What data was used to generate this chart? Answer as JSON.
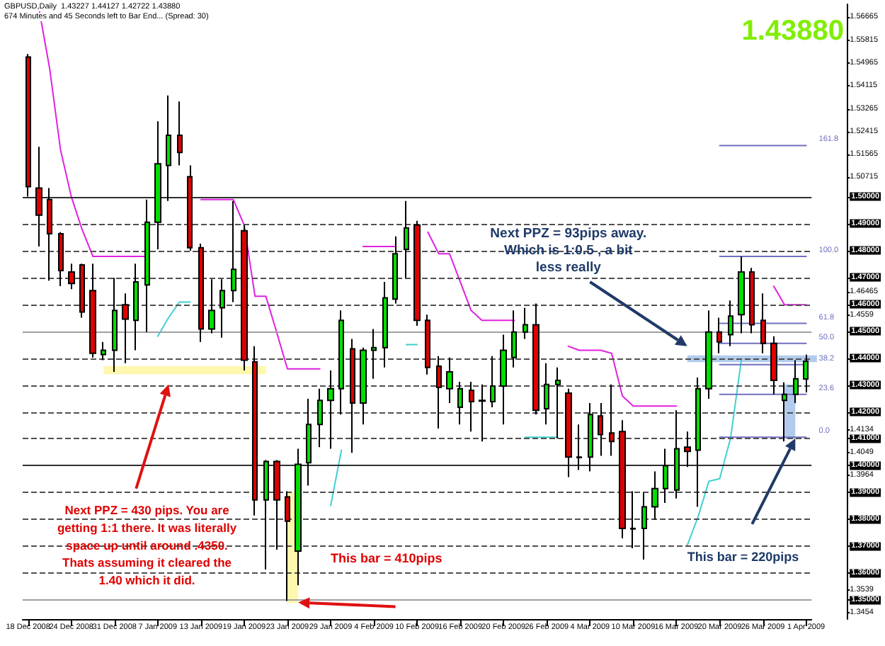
{
  "chart_data": {
    "type": "candlestick",
    "title": "GBPUSD,Daily  1.43227 1.44127 1.42722 1.43880",
    "subtitle": "674 Minutes and 45 Seconds left to Bar End... (Spread: 30)",
    "categories": [
      "18 Dec 2008",
      null,
      null,
      null,
      "24 Dec 2008",
      null,
      null,
      null,
      "31 Dec 2008",
      null,
      null,
      null,
      "7 Jan 2009",
      null,
      null,
      null,
      "13 Jan 2009",
      null,
      null,
      null,
      "19 Jan 2009",
      null,
      null,
      null,
      "23 Jan 2009",
      null,
      null,
      null,
      "29 Jan 2009",
      null,
      null,
      null,
      "4 Feb 2009",
      null,
      null,
      null,
      "10 Feb 2009",
      null,
      null,
      null,
      "16 Feb 2009",
      null,
      null,
      null,
      "20 Feb 2009",
      null,
      null,
      null,
      "26 Feb 2009",
      null,
      null,
      null,
      "4 Mar 2009",
      null,
      null,
      null,
      "10 Mar 2009",
      null,
      null,
      null,
      "16 Mar 2009",
      null,
      null,
      null,
      "20 Mar 2009",
      null,
      null,
      null,
      "26 Mar 2009",
      null,
      null,
      null,
      "1 Apr 2009"
    ],
    "ohlc": [
      [
        1.5519,
        1.553,
        1.5,
        1.5037
      ],
      [
        1.5032,
        1.5185,
        1.4815,
        1.4931
      ],
      [
        1.4989,
        1.5032,
        1.4688,
        1.4862
      ],
      [
        1.4862,
        1.4868,
        1.4667,
        1.4725
      ],
      [
        1.472,
        1.4751,
        1.4656,
        1.4677
      ],
      [
        1.4746,
        1.4751,
        1.455,
        1.4571
      ],
      [
        1.4651,
        1.4751,
        1.4402,
        1.4418
      ],
      [
        1.4413,
        1.446,
        1.4392,
        1.4429
      ],
      [
        1.4429,
        1.4698,
        1.4349,
        1.4577
      ],
      [
        1.4598,
        1.464,
        1.4381,
        1.4545
      ],
      [
        1.454,
        1.4751,
        1.4429,
        1.4683
      ],
      [
        1.4672,
        1.4989,
        1.4497,
        1.4905
      ],
      [
        1.4905,
        1.528,
        1.4804,
        1.5122
      ],
      [
        1.5116,
        1.5376,
        1.4984,
        1.5228
      ],
      [
        1.5228,
        1.5354,
        1.5116,
        1.5164
      ],
      [
        1.5074,
        1.5116,
        1.4799,
        1.481
      ],
      [
        1.481,
        1.4825,
        1.446,
        1.4508
      ],
      [
        1.4508,
        1.4693,
        1.4492,
        1.4577
      ],
      [
        1.4587,
        1.4693,
        1.4476,
        1.4651
      ],
      [
        1.4651,
        1.4984,
        1.4608,
        1.473
      ],
      [
        1.4873,
        1.4894,
        1.4354,
        1.4392
      ],
      [
        1.4386,
        1.4444,
        1.3815,
        1.3873
      ],
      [
        1.3873,
        1.4021,
        1.3614,
        1.4016
      ],
      [
        1.4016,
        1.4021,
        1.3688,
        1.3873
      ],
      [
        1.3884,
        1.3905,
        1.3497,
        1.3794
      ],
      [
        1.3683,
        1.4063,
        1.3556,
        1.4005
      ],
      [
        1.4011,
        1.4249,
        1.3926,
        1.4153
      ],
      [
        1.4153,
        1.4286,
        1.4069,
        1.4243
      ],
      [
        1.4243,
        1.4354,
        1.4063,
        1.4286
      ],
      [
        1.4286,
        1.4577,
        1.419,
        1.454
      ],
      [
        1.4434,
        1.4471,
        1.4048,
        1.4233
      ],
      [
        1.4233,
        1.4439,
        1.4153,
        1.4429
      ],
      [
        1.4429,
        1.4508,
        1.4323,
        1.4439
      ],
      [
        1.4439,
        1.4683,
        1.4365,
        1.4624
      ],
      [
        1.4619,
        1.4852,
        1.4603,
        1.4788
      ],
      [
        1.4804,
        1.4984,
        1.4698,
        1.4884
      ],
      [
        1.4894,
        1.491,
        1.452,
        1.454
      ],
      [
        1.454,
        1.4561,
        1.4339,
        1.4365
      ],
      [
        1.437,
        1.4407,
        1.4138,
        1.4291
      ],
      [
        1.4286,
        1.4402,
        1.4233,
        1.4349
      ],
      [
        1.4217,
        1.4312,
        1.4153,
        1.4286
      ],
      [
        1.428,
        1.4312,
        1.4127,
        1.4238
      ],
      [
        1.4243,
        1.4302,
        1.409,
        1.424
      ],
      [
        1.4238,
        1.4407,
        1.4217,
        1.4296
      ],
      [
        1.4296,
        1.4487,
        1.4153,
        1.4429
      ],
      [
        1.4402,
        1.4577,
        1.4365,
        1.4497
      ],
      [
        1.4497,
        1.4587,
        1.4471,
        1.4524
      ],
      [
        1.4524,
        1.4603,
        1.419,
        1.4206
      ],
      [
        1.4212,
        1.4381,
        1.4153,
        1.4302
      ],
      [
        1.4302,
        1.4365,
        1.4101,
        1.4317
      ],
      [
        1.427,
        1.4286,
        1.3958,
        1.4032
      ],
      [
        1.4032,
        1.4153,
        1.3984,
        1.403
      ],
      [
        1.4032,
        1.4233,
        1.3979,
        1.419
      ],
      [
        1.4185,
        1.4233,
        1.4037,
        1.4116
      ],
      [
        1.4122,
        1.4302,
        1.4037,
        1.409
      ],
      [
        1.4127,
        1.4169,
        1.373,
        1.3767
      ],
      [
        1.3767,
        1.3905,
        1.3693,
        1.3765
      ],
      [
        1.3767,
        1.3899,
        1.3651,
        1.3847
      ],
      [
        1.3847,
        1.3979,
        1.3799,
        1.3915
      ],
      [
        1.3915,
        1.4063,
        1.3862,
        1.4
      ],
      [
        1.391,
        1.4206,
        1.3878,
        1.4063
      ],
      [
        1.4069,
        1.4127,
        1.3995,
        1.4053
      ],
      [
        1.4058,
        1.4328,
        1.3847,
        1.4286
      ],
      [
        1.4286,
        1.4577,
        1.4249,
        1.4497
      ],
      [
        1.4497,
        1.455,
        1.4418,
        1.446
      ],
      [
        1.4487,
        1.4614,
        1.4444,
        1.4556
      ],
      [
        1.4561,
        1.4778,
        1.4492,
        1.472
      ],
      [
        1.472,
        1.4735,
        1.4492,
        1.4524
      ],
      [
        1.454,
        1.464,
        1.4418,
        1.4455
      ],
      [
        1.4455,
        1.4481,
        1.4265,
        1.4317
      ],
      [
        1.4243,
        1.431,
        1.409,
        1.4265
      ],
      [
        1.4265,
        1.4392,
        1.4233,
        1.4323
      ],
      [
        1.43227,
        1.44127,
        1.42722,
        1.4388
      ]
    ],
    "colors": [
      "#e00000",
      "#e00000",
      "#e00000",
      "#e00000",
      "#e00000",
      "#e00000",
      "#e00000",
      "#00e000",
      "#00e000",
      "#e00000",
      "#00e000",
      "#00e000",
      "#00e000",
      "#00e000",
      "#e00000",
      "#e00000",
      "#e00000",
      "#00e000",
      "#00e000",
      "#00e000",
      "#e00000",
      "#e00000",
      "#00e000",
      "#e00000",
      "#e00000",
      "#00e000",
      "#00e000",
      "#00e000",
      "#00e000",
      "#00e000",
      "#e00000",
      "#00e000",
      "#00e000",
      "#00e000",
      "#00e000",
      "#00e000",
      "#e00000",
      "#e00000",
      "#e00000",
      "#00e000",
      "#00e000",
      "#e00000",
      "#e00000",
      "#00e000",
      "#00e000",
      "#00e000",
      "#00e000",
      "#e00000",
      "#00e000",
      "#00e000",
      "#e00000",
      "#e00000",
      "#00e000",
      "#e00000",
      "#e00000",
      "#e00000",
      "#e00000",
      "#00e000",
      "#00e000",
      "#00e000",
      "#00e000",
      "#e00000",
      "#00e000",
      "#00e000",
      "#e00000",
      "#00e000",
      "#00e000",
      "#e00000",
      "#e00000",
      "#e00000",
      "#00e000",
      "#00e000",
      "#00e000"
    ],
    "series": [
      {
        "type": "line",
        "color": "#e020e0",
        "values": [
          null,
          1.57,
          1.5476,
          1.5175,
          1.5,
          1.4878,
          1.4778,
          1.4778,
          1.4778,
          1.4778,
          1.4778,
          1.4778,
          null,
          null,
          null,
          null,
          1.4989,
          1.4989,
          1.4989,
          1.4989,
          1.4894,
          1.463,
          1.463,
          1.4497,
          1.436,
          1.436,
          1.436,
          1.436,
          null,
          null,
          null,
          1.4815,
          1.4815,
          1.4815,
          1.4815,
          null,
          null,
          1.4868,
          1.4788,
          1.4788,
          1.4683,
          1.4577,
          1.454,
          1.454,
          1.454,
          1.454,
          null,
          null,
          null,
          null,
          1.4444,
          1.4429,
          1.4429,
          1.4429,
          1.4418,
          1.4259,
          1.4222,
          1.4222,
          1.4222,
          1.4222,
          1.4222,
          null,
          null,
          null,
          null,
          null,
          null,
          null,
          null,
          1.4667,
          1.4598,
          1.4598,
          1.4598
        ]
      },
      {
        "type": "line",
        "color": "#40d0d0",
        "values": [
          null,
          null,
          null,
          null,
          null,
          null,
          null,
          null,
          null,
          null,
          null,
          null,
          1.4481,
          1.455,
          1.4608,
          1.4608,
          null,
          null,
          null,
          null,
          null,
          null,
          null,
          null,
          null,
          null,
          null,
          null,
          1.3852,
          1.4058,
          null,
          null,
          null,
          null,
          null,
          1.445,
          1.445,
          null,
          null,
          null,
          null,
          null,
          null,
          null,
          null,
          null,
          1.4106,
          1.4106,
          1.4106,
          1.4106,
          null,
          null,
          null,
          null,
          null,
          null,
          null,
          null,
          null,
          null,
          null,
          1.3704,
          1.381,
          1.3942,
          1.3952,
          1.4101,
          1.4392,
          null,
          null,
          null,
          null,
          null,
          null
        ]
      },
      {
        "type": "line",
        "name": "161.8",
        "color": "#7070c0",
        "x": [
          "20 Mar 2009",
          "1 Apr 2009"
        ],
        "values": [
          1.519,
          1.519
        ]
      },
      {
        "type": "line",
        "name": "100.0",
        "color": "#7070c0",
        "x": [
          "20 Mar 2009",
          "1 Apr 2009"
        ],
        "values": [
          1.4778,
          1.4778
        ]
      },
      {
        "type": "line",
        "name": "61.8",
        "color": "#7070c0",
        "x": [
          "20 Mar 2009",
          "1 Apr 2009"
        ],
        "values": [
          1.4529,
          1.4529
        ]
      },
      {
        "type": "line",
        "name": "50.0",
        "color": "#7070c0",
        "x": [
          "20 Mar 2009",
          "1 Apr 2009"
        ],
        "values": [
          1.4455,
          1.4455
        ]
      },
      {
        "type": "line",
        "name": "38.2",
        "color": "#7070c0",
        "x": [
          "20 Mar 2009",
          "1 Apr 2009"
        ],
        "values": [
          1.4376,
          1.4376
        ]
      },
      {
        "type": "line",
        "name": "23.6",
        "color": "#7070c0",
        "x": [
          "20 Mar 2009",
          "1 Apr 2009"
        ],
        "values": [
          1.4265,
          1.4265
        ]
      },
      {
        "type": "line",
        "name": "0.0",
        "color": "#7070c0",
        "x": [
          "20 Mar 2009",
          "1 Apr 2009"
        ],
        "values": [
          1.4106,
          1.4106
        ]
      }
    ],
    "ylim": [
      1.343,
      1.5715
    ],
    "yticks": [
      1.56665,
      1.55815,
      1.54965,
      1.54115,
      1.53265,
      1.52415,
      1.51565,
      1.50715,
      {
        "value": 1.5,
        "label": "1.50000"
      },
      {
        "value": 1.49,
        "label": "1.49000"
      },
      {
        "value": 1.48,
        "label": "1.48000"
      },
      {
        "value": 1.47,
        "label": "1.47000"
      },
      1.46465,
      {
        "value": 1.46,
        "label": "1.46000"
      },
      1.4559,
      {
        "value": 1.45,
        "label": "1.45000"
      },
      {
        "value": 1.44,
        "label": "1.44000"
      },
      {
        "value": 1.43,
        "label": "1.43000"
      },
      {
        "value": 1.42,
        "label": "1.42000"
      },
      1.4134,
      {
        "value": 1.41,
        "label": "1.41000"
      },
      1.4049,
      {
        "value": 1.4,
        "label": "1.40000"
      },
      1.3964,
      {
        "value": 1.39,
        "label": "1.39000"
      },
      {
        "value": 1.38,
        "label": "1.38000"
      },
      {
        "value": 1.37,
        "label": "1.37000"
      },
      {
        "value": 1.36,
        "label": "1.36000"
      },
      1.3539,
      {
        "value": 1.35,
        "label": "1.35000"
      },
      1.3454
    ],
    "ref_lines": [
      {
        "axis": "y",
        "value": 1.5,
        "color": "#303030",
        "line_style": "solid"
      },
      {
        "axis": "y",
        "value": 1.49,
        "color": "#505050",
        "line_style": "dashed"
      },
      {
        "axis": "y",
        "value": 1.48,
        "color": "#505050",
        "line_style": "dashed"
      },
      {
        "axis": "y",
        "value": 1.47,
        "color": "#505050",
        "line_style": "dashed"
      },
      {
        "axis": "y",
        "value": 1.46,
        "color": "#505050",
        "line_style": "dashed"
      },
      {
        "axis": "y",
        "value": 1.45,
        "color": "#a0a0a0",
        "line_style": "solid"
      },
      {
        "axis": "y",
        "value": 1.44,
        "color": "#505050",
        "line_style": "dashed"
      },
      {
        "axis": "y",
        "value": 1.43,
        "color": "#505050",
        "line_style": "dashed"
      },
      {
        "axis": "y",
        "value": 1.42,
        "color": "#505050",
        "line_style": "dashed"
      },
      {
        "axis": "y",
        "value": 1.41,
        "color": "#505050",
        "line_style": "dashed"
      },
      {
        "axis": "y",
        "value": 1.4,
        "color": "#303030",
        "line_style": "solid"
      },
      {
        "axis": "y",
        "value": 1.39,
        "color": "#505050",
        "line_style": "dashed"
      },
      {
        "axis": "y",
        "value": 1.38,
        "color": "#505050",
        "line_style": "dashed"
      },
      {
        "axis": "y",
        "value": 1.37,
        "color": "#505050",
        "line_style": "dashed"
      },
      {
        "axis": "y",
        "value": 1.36,
        "color": "#505050",
        "line_style": "dashed"
      },
      {
        "axis": "y",
        "value": 1.35,
        "color": "#a0a0a0",
        "line_style": "solid"
      }
    ],
    "annotations": [
      "Next PPZ = 93pips away.\nWhich is 1:0.5 , a bit\nless really",
      "Next PPZ = 430 pips. You are\ngetting 1:1 there. It was literally\nspace up until around .4350.\nThats assuming it cleared the\n1.40 which it did.",
      "This bar = 410pips",
      "This bar = 220pips",
      "1.43880"
    ],
    "grid": false,
    "legend": false,
    "marker": "none",
    "line_style": "solid"
  }
}
